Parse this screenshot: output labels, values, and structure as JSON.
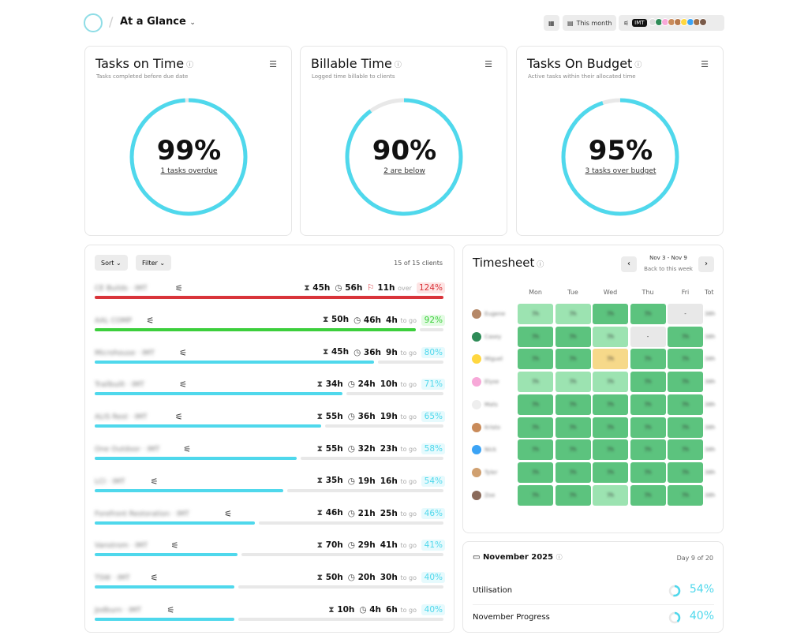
{
  "header": {
    "title": "At a Glance",
    "view_icon": "grid-icon",
    "date_range": "This month",
    "team": "IMT",
    "avatar_colors": [
      "#ddd",
      "#2e8b57",
      "#f7a8d8",
      "#c98b5a",
      "#b7794b",
      "#ffd740",
      "#3ba3f5",
      "#a0704a",
      "#7a5b4a"
    ]
  },
  "cards": [
    {
      "title": "Tasks on Time",
      "subtitle": "Tasks completed before due date",
      "value": "99%",
      "percent": 99,
      "link": "1 tasks overdue"
    },
    {
      "title": "Billable Time",
      "subtitle": "Logged time billable to clients",
      "value": "90%",
      "percent": 90,
      "link": "2 are below"
    },
    {
      "title": "Tasks On Budget",
      "subtitle": "Active tasks within their allocated time",
      "value": "95%",
      "percent": 95,
      "link": "3 tasks over budget"
    }
  ],
  "clients": {
    "sort": "Sort",
    "filter": "Filter",
    "count": "15 of 15 clients",
    "rows": [
      {
        "name": "CE Builds · IMT",
        "budget": "45h",
        "logged": "56h",
        "remain": "11h",
        "suffix": "over",
        "pct": "124%",
        "progress": 124,
        "status": "over"
      },
      {
        "name": "AAL COMP",
        "budget": "50h",
        "logged": "46h",
        "remain": "4h",
        "suffix": "to go",
        "pct": "92%",
        "progress": 92,
        "status": "good"
      },
      {
        "name": "Microhouse · IMT",
        "budget": "45h",
        "logged": "36h",
        "remain": "9h",
        "suffix": "to go",
        "pct": "80%",
        "progress": 80,
        "status": "normal"
      },
      {
        "name": "Trailbuilt · IMT",
        "budget": "34h",
        "logged": "24h",
        "remain": "10h",
        "suffix": "to go",
        "pct": "71%",
        "progress": 71,
        "status": "normal"
      },
      {
        "name": "ALIS Rest · IMT",
        "budget": "55h",
        "logged": "36h",
        "remain": "19h",
        "suffix": "to go",
        "pct": "65%",
        "progress": 65,
        "status": "normal"
      },
      {
        "name": "One Outdoor · IMT",
        "budget": "55h",
        "logged": "32h",
        "remain": "23h",
        "suffix": "to go",
        "pct": "58%",
        "progress": 58,
        "status": "normal"
      },
      {
        "name": "LCI · IMT",
        "budget": "35h",
        "logged": "19h",
        "remain": "16h",
        "suffix": "to go",
        "pct": "54%",
        "progress": 54,
        "status": "normal"
      },
      {
        "name": "Forefront Restoration · IMT",
        "budget": "46h",
        "logged": "21h",
        "remain": "25h",
        "suffix": "to go",
        "pct": "46%",
        "progress": 46,
        "status": "normal"
      },
      {
        "name": "Vanstrom · IMT",
        "budget": "70h",
        "logged": "29h",
        "remain": "41h",
        "suffix": "to go",
        "pct": "41%",
        "progress": 41,
        "status": "normal"
      },
      {
        "name": "TSW · IMT",
        "budget": "50h",
        "logged": "20h",
        "remain": "30h",
        "suffix": "to go",
        "pct": "40%",
        "progress": 40,
        "status": "normal"
      },
      {
        "name": "Jodburn · IMT",
        "budget": "10h",
        "logged": "4h",
        "remain": "6h",
        "suffix": "to go",
        "pct": "40%",
        "progress": 40,
        "status": "normal"
      }
    ]
  },
  "timesheet": {
    "title": "Timesheet",
    "range": "Nov 3 - Nov 9",
    "back": "Back to this week",
    "days": [
      "Mon",
      "Tue",
      "Wed",
      "Thu",
      "Fri",
      "Tot"
    ],
    "people": [
      {
        "name": "Eugene",
        "color": "#b58868",
        "cells": [
          "l",
          "l",
          "d",
          "d",
          "g"
        ]
      },
      {
        "name": "Casey",
        "color": "#2e8b57",
        "cells": [
          "d",
          "d",
          "l",
          "g",
          "d"
        ]
      },
      {
        "name": "Miguel",
        "color": "#ffd740",
        "cells": [
          "d",
          "d",
          "y",
          "d",
          "d"
        ]
      },
      {
        "name": "Elyse",
        "color": "#f7a8d8",
        "cells": [
          "l",
          "l",
          "l",
          "d",
          "d"
        ]
      },
      {
        "name": "Mats",
        "color": "#eeeeee",
        "cells": [
          "d",
          "d",
          "d",
          "d",
          "d"
        ]
      },
      {
        "name": "Kristo",
        "color": "#c98b5a",
        "cells": [
          "d",
          "d",
          "d",
          "d",
          "d"
        ]
      },
      {
        "name": "Nick",
        "color": "#3ba3f5",
        "cells": [
          "d",
          "d",
          "d",
          "d",
          "d"
        ]
      },
      {
        "name": "Tyler",
        "color": "#d0a070",
        "cells": [
          "d",
          "d",
          "d",
          "d",
          "d"
        ]
      },
      {
        "name": "Zoe",
        "color": "#8a6a5a",
        "cells": [
          "d",
          "d",
          "l",
          "d",
          "d"
        ]
      }
    ]
  },
  "month": {
    "title": "November 2025",
    "day": "Day 9 of 20",
    "metrics": [
      {
        "label": "Utilisation",
        "value": "54%",
        "percent": 54
      },
      {
        "label": "November Progress",
        "value": "40%",
        "percent": 40
      }
    ]
  },
  "colors": {
    "accent": "#4fd8ec",
    "over": "#d9343a",
    "good": "#3ccf3c",
    "dark": "#5cc37e",
    "light": "#9ce3b1",
    "grey": "#e8e8e8",
    "yellow": "#f6d98a"
  }
}
